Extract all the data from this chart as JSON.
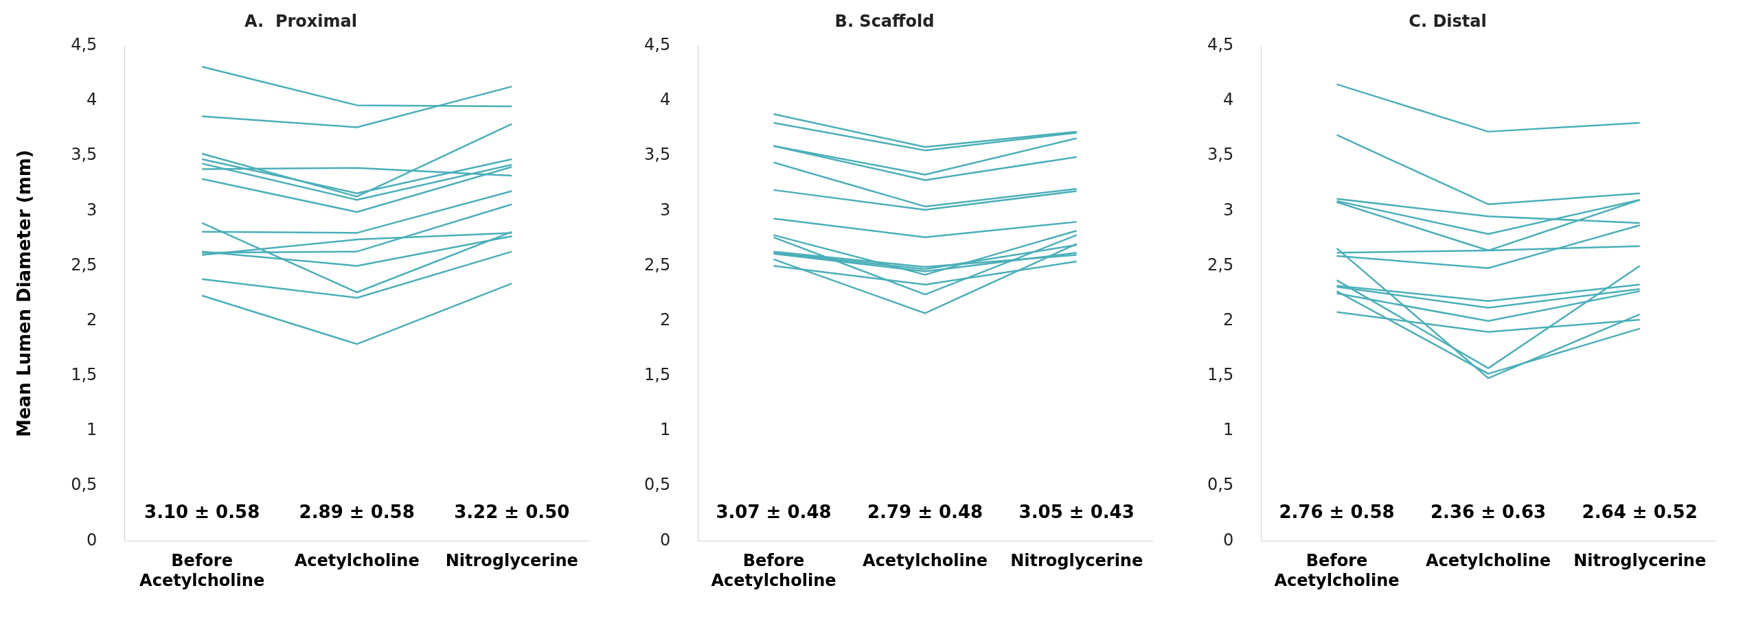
{
  "chart_data": [
    {
      "type": "line",
      "title": "A.  Proximal",
      "ylabel": "Mean Lumen Diameter (mm)",
      "categories": [
        "Before Acetylcholine",
        "Acetylcholine",
        "Nitroglycerine"
      ],
      "ylim": [
        0,
        4.5
      ],
      "yticks": [
        0,
        {
          "value": 0.5,
          "label": "0,5"
        },
        1,
        {
          "value": 1.5,
          "label": "1,5"
        },
        2,
        {
          "value": 2.5,
          "label": "2,5"
        },
        3,
        {
          "value": 3.5,
          "label": "3,5"
        },
        4,
        {
          "value": 4.5,
          "label": "4,5"
        }
      ],
      "annotations": [
        "3.10 ± 0.58",
        "2.89 ± 0.58",
        "3.22 ± 0.50"
      ],
      "series": [
        {
          "color": "#4aafb8",
          "values": [
            4.31,
            3.96,
            3.95
          ]
        },
        {
          "color": "#4aafb8",
          "values": [
            3.86,
            3.76,
            4.13
          ]
        },
        {
          "color": "#4aafb8",
          "values": [
            3.52,
            3.13,
            3.79
          ]
        },
        {
          "color": "#4aafb8",
          "values": [
            3.47,
            3.16,
            3.47
          ]
        },
        {
          "color": "#4aafb8",
          "values": [
            3.43,
            3.1,
            3.42
          ]
        },
        {
          "color": "#4aafb8",
          "values": [
            3.38,
            3.39,
            3.32
          ]
        },
        {
          "color": "#4aafb8",
          "values": [
            3.29,
            2.99,
            3.4
          ]
        },
        {
          "color": "#4aafb8",
          "values": [
            2.89,
            2.26,
            2.81
          ]
        },
        {
          "color": "#4aafb8",
          "values": [
            2.81,
            2.8,
            3.18
          ]
        },
        {
          "color": "#4aafb8",
          "values": [
            2.62,
            2.63,
            3.06
          ]
        },
        {
          "color": "#4aafb8",
          "values": [
            2.6,
            2.74,
            2.8
          ]
        },
        {
          "color": "#4aafb8",
          "values": [
            2.63,
            2.5,
            2.77
          ]
        },
        {
          "color": "#4aafb8",
          "values": [
            2.38,
            2.21,
            2.63
          ]
        },
        {
          "color": "#4aafb8",
          "values": [
            2.23,
            1.79,
            2.34
          ]
        }
      ]
    },
    {
      "type": "line",
      "title": "B. Scaffold",
      "categories": [
        "Before Acetylcholine",
        "Acetylcholine",
        "Nitroglycerine"
      ],
      "ylim": [
        0,
        4.5
      ],
      "yticks": [
        0,
        {
          "value": 0.5,
          "label": "0,5"
        },
        1,
        {
          "value": 1.5,
          "label": "1,5"
        },
        2,
        {
          "value": 2.5,
          "label": "2,5"
        },
        3,
        {
          "value": 3.5,
          "label": "3,5"
        },
        4,
        {
          "value": 4.5,
          "label": "4,5"
        }
      ],
      "annotations": [
        "3.07 ± 0.48",
        "2.79 ± 0.48",
        "3.05 ± 0.43"
      ],
      "series": [
        {
          "color": "#4aafb8",
          "values": [
            3.88,
            3.58,
            3.72
          ]
        },
        {
          "color": "#4aafb8",
          "values": [
            3.8,
            3.55,
            3.71
          ]
        },
        {
          "color": "#4aafb8",
          "values": [
            3.59,
            3.33,
            3.66
          ]
        },
        {
          "color": "#4aafb8",
          "values": [
            3.59,
            3.28,
            3.49
          ]
        },
        {
          "color": "#4aafb8",
          "values": [
            3.44,
            3.04,
            3.2
          ]
        },
        {
          "color": "#4aafb8",
          "values": [
            3.19,
            3.01,
            3.18
          ]
        },
        {
          "color": "#4aafb8",
          "values": [
            2.93,
            2.76,
            2.9
          ]
        },
        {
          "color": "#4aafb8",
          "values": [
            2.78,
            2.42,
            2.82
          ]
        },
        {
          "color": "#4aafb8",
          "values": [
            2.76,
            2.24,
            2.78
          ]
        },
        {
          "color": "#4aafb8",
          "values": [
            2.63,
            2.49,
            2.6
          ]
        },
        {
          "color": "#4aafb8",
          "values": [
            2.62,
            2.47,
            2.69
          ]
        },
        {
          "color": "#4aafb8",
          "values": [
            2.61,
            2.45,
            2.62
          ]
        },
        {
          "color": "#4aafb8",
          "values": [
            2.56,
            2.07,
            2.7
          ]
        },
        {
          "color": "#4aafb8",
          "values": [
            2.5,
            2.33,
            2.54
          ]
        }
      ]
    },
    {
      "type": "line",
      "title": "C. Distal",
      "categories": [
        "Before Acetylcholine",
        "Acetylcholine",
        "Nitroglycerine"
      ],
      "ylim": [
        0,
        4.5
      ],
      "yticks": [
        0,
        {
          "value": 0.5,
          "label": "0,5"
        },
        1,
        {
          "value": 1.5,
          "label": "1,5"
        },
        2,
        {
          "value": 2.5,
          "label": "2,5"
        },
        3,
        {
          "value": 3.5,
          "label": "3,5"
        },
        4,
        {
          "value": 4.5,
          "label": "4,5"
        }
      ],
      "annotations": [
        "2.76 ± 0.58",
        "2.36 ± 0.63",
        "2.64 ± 0.52"
      ],
      "series": [
        {
          "color": "#4aafb8",
          "values": [
            4.15,
            3.72,
            3.8
          ]
        },
        {
          "color": "#4aafb8",
          "values": [
            3.69,
            3.06,
            3.16
          ]
        },
        {
          "color": "#4aafb8",
          "values": [
            3.11,
            2.95,
            2.89
          ]
        },
        {
          "color": "#4aafb8",
          "values": [
            3.09,
            2.79,
            3.1
          ]
        },
        {
          "color": "#4aafb8",
          "values": [
            3.08,
            2.64,
            3.1
          ]
        },
        {
          "color": "#4aafb8",
          "values": [
            2.62,
            2.64,
            2.68
          ]
        },
        {
          "color": "#4aafb8",
          "values": [
            2.59,
            2.48,
            2.87
          ]
        },
        {
          "color": "#4aafb8",
          "values": [
            2.66,
            1.48,
            2.06
          ]
        },
        {
          "color": "#4aafb8",
          "values": [
            2.37,
            1.57,
            2.5
          ]
        },
        {
          "color": "#4aafb8",
          "values": [
            2.27,
            1.52,
            1.93
          ]
        },
        {
          "color": "#4aafb8",
          "values": [
            2.32,
            2.18,
            2.33
          ]
        },
        {
          "color": "#4aafb8",
          "values": [
            2.31,
            2.12,
            2.29
          ]
        },
        {
          "color": "#4aafb8",
          "values": [
            2.25,
            2.0,
            2.27
          ]
        },
        {
          "color": "#4aafb8",
          "values": [
            2.08,
            1.9,
            2.01
          ]
        }
      ]
    }
  ]
}
